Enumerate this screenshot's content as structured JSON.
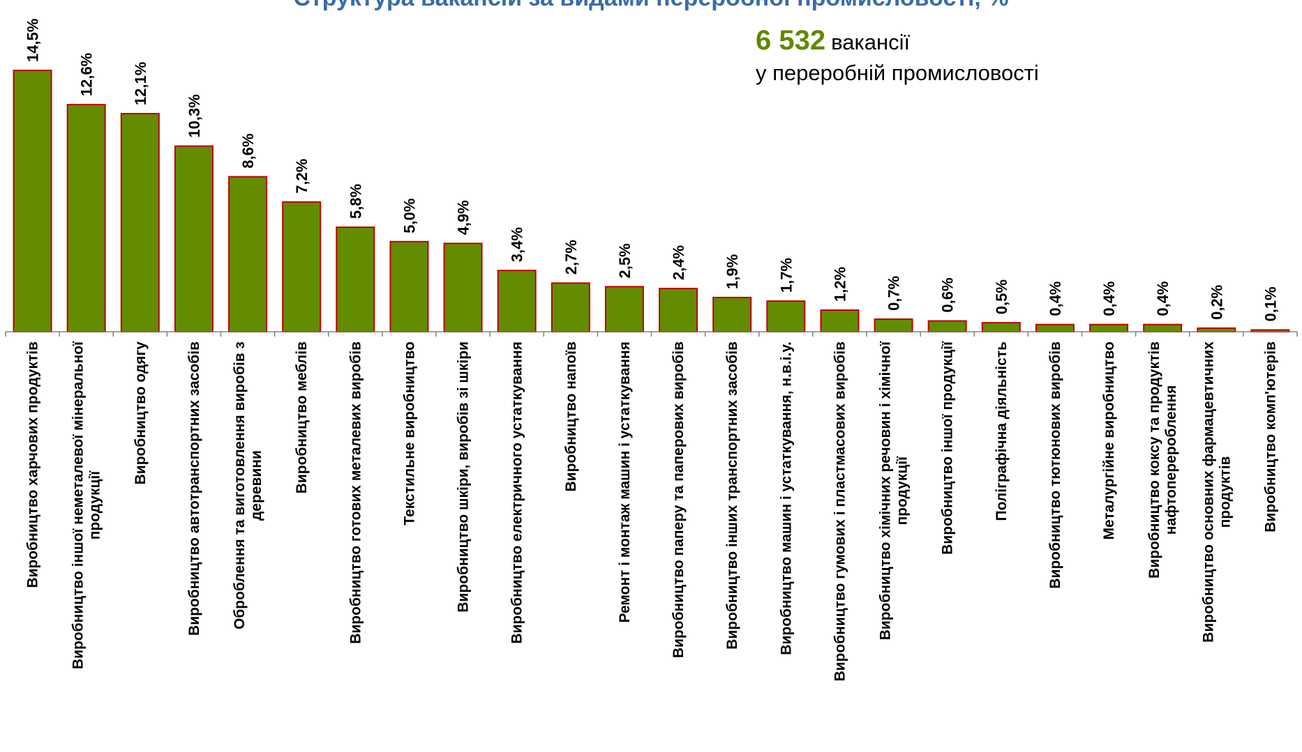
{
  "title": "Структура вакансій за видами переробної промисловості, %",
  "annotation": {
    "value": "6 532",
    "unit": "вакансії",
    "line2": "у переробній промисловості"
  },
  "colors": {
    "bar_fill": "#638C00",
    "bar_stroke": "#C00000",
    "title": "#3B6CA8",
    "highlight": "#5F8A00",
    "axis": "#808080"
  },
  "chart_data": {
    "type": "bar",
    "title": "Структура вакансій за видами переробної промисловості, %",
    "categories": [
      [
        "Виробництво харчових продуктів"
      ],
      [
        "Виробництво іншої неметалевої мінеральної",
        "продукції"
      ],
      [
        "Виробництво одягу"
      ],
      [
        "Виробництво автотранспортних засобів"
      ],
      [
        "Оброблення та виготовлення виробів з",
        "деревини"
      ],
      [
        "Виробництво меблів"
      ],
      [
        "Виробництво готових металевих виробів"
      ],
      [
        "Текстильне виробництво"
      ],
      [
        "Виробництво шкіри, виробів зі шкіри"
      ],
      [
        "Виробництво електричного устаткування"
      ],
      [
        "Виробництво напоїв"
      ],
      [
        "Ремонт і монтаж машин і устаткування"
      ],
      [
        "Виробництво паперу та паперових виробів"
      ],
      [
        "Виробництво інших транспортних засобів"
      ],
      [
        "Виробництво машин і устаткування, н.в.і.у."
      ],
      [
        "Виробництво гумових і пластмасових виробів"
      ],
      [
        "Виробництво хімічних речовин і хімічної",
        "продукції"
      ],
      [
        "Виробництво іншої продукції"
      ],
      [
        "Поліграфічна діяльність"
      ],
      [
        "Виробництво тютюнових виробів"
      ],
      [
        "Металургійне виробництво"
      ],
      [
        "Виробництво коксу та продуктів",
        "нафтоперероблення"
      ],
      [
        "Виробництво основних фармацевтичних",
        "продуктів"
      ],
      [
        "Виробництво комп'ютерів"
      ]
    ],
    "values": [
      14.5,
      12.6,
      12.1,
      10.3,
      8.6,
      7.2,
      5.8,
      5.0,
      4.9,
      3.4,
      2.7,
      2.5,
      2.4,
      1.9,
      1.7,
      1.2,
      0.7,
      0.6,
      0.5,
      0.4,
      0.4,
      0.4,
      0.2,
      0.1
    ],
    "value_labels": [
      "14,5%",
      "12,6%",
      "12,1%",
      "10,3%",
      "8,6%",
      "7,2%",
      "5,8%",
      "5,0%",
      "4,9%",
      "3,4%",
      "2,7%",
      "2,5%",
      "2,4%",
      "1,9%",
      "1,7%",
      "1,2%",
      "0,7%",
      "0,6%",
      "0,5%",
      "0,4%",
      "0,4%",
      "0,4%",
      "0,2%",
      "0,1%"
    ],
    "xlabel": "",
    "ylabel": "",
    "ylim": [
      0,
      14.5
    ],
    "grid": false,
    "legend": "none"
  }
}
